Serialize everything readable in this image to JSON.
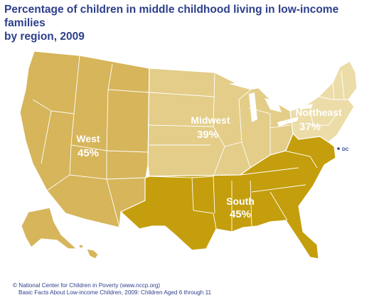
{
  "title": {
    "line1": "Percentage of children in middle childhood living in low-income families",
    "line2": "by region, 2009"
  },
  "regions": [
    {
      "name": "West",
      "value": "45%",
      "color": "#d6b55b"
    },
    {
      "name": "Midwest",
      "value": "39%",
      "color": "#e3cd88"
    },
    {
      "name": "Northeast",
      "value": "37%",
      "color": "#ecdca8"
    },
    {
      "name": "South",
      "value": "45%",
      "color": "#c49e0c"
    }
  ],
  "dc_label": "DC",
  "dc_color": "#2d3f8c",
  "footer": {
    "line1": "© National Center for Children in Poverty (www.nccp.org)",
    "line2": "Basic Facts About Low-income Children, 2009: Children Aged 6 through 11"
  }
}
